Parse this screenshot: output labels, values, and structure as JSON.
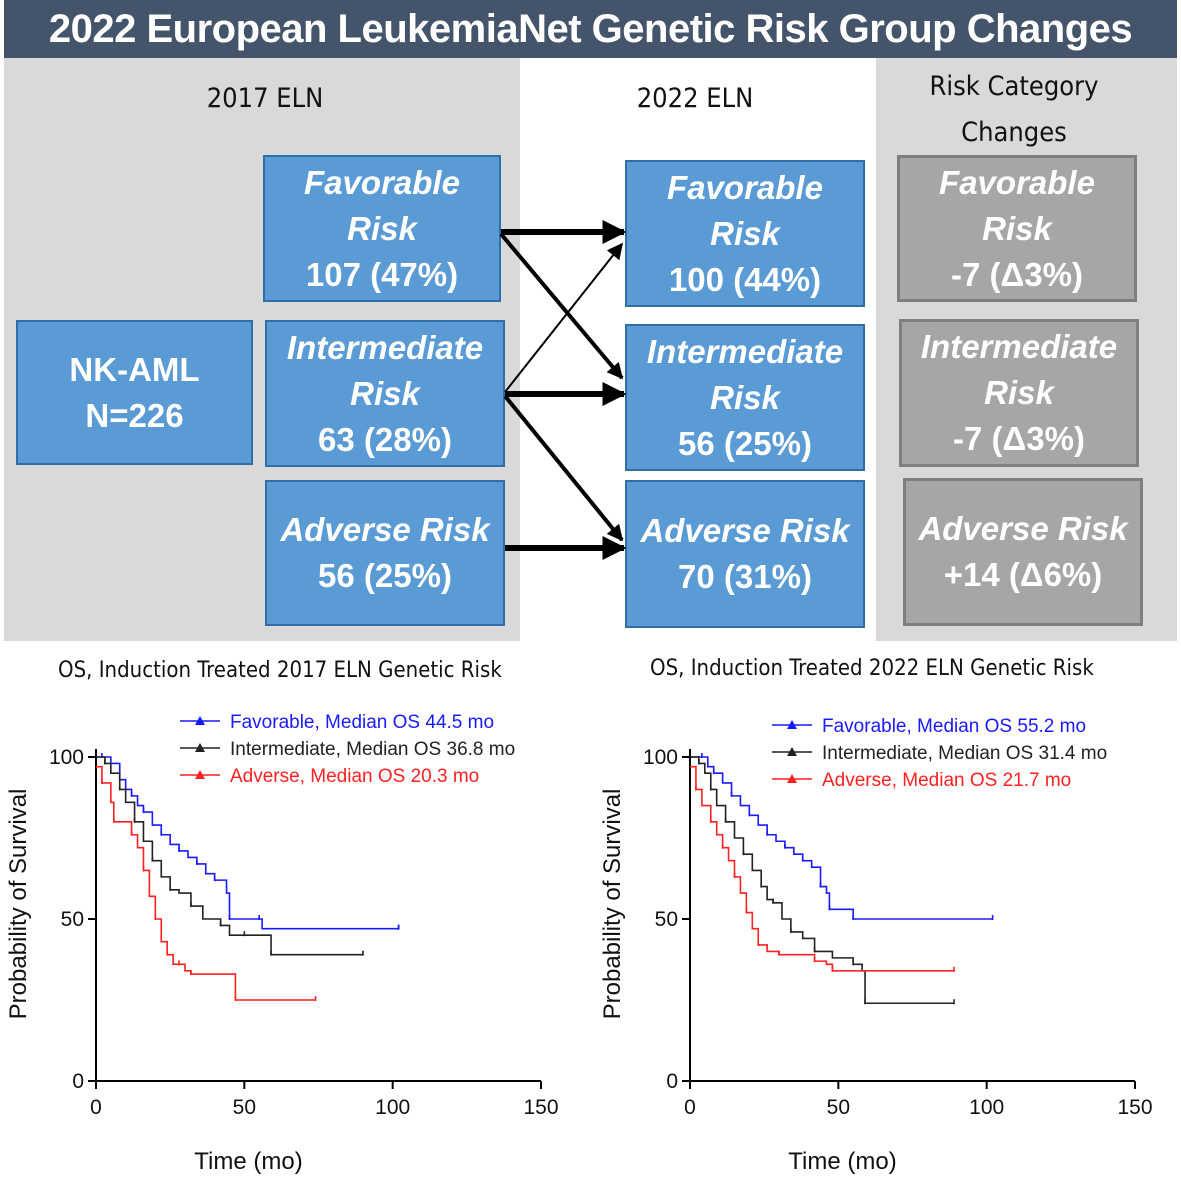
{
  "header": {
    "title": "2022 European LeukemiaNet Genetic Risk Group Changes"
  },
  "flow": {
    "col2017": "2017 ELN",
    "col2022": "2022 ELN",
    "colChanges": [
      "Risk Category",
      "Changes"
    ],
    "nkaml": [
      "NK-AML",
      "N=226"
    ],
    "eln2017": [
      {
        "lines": [
          "Favorable",
          "Risk"
        ],
        "value": "107 (47%)"
      },
      {
        "lines": [
          "Intermediate",
          "Risk"
        ],
        "value": "63 (28%)"
      },
      {
        "lines": [
          "Adverse Risk"
        ],
        "value": "56 (25%)"
      }
    ],
    "eln2022": [
      {
        "lines": [
          "Favorable",
          "Risk"
        ],
        "value": "100 (44%)"
      },
      {
        "lines": [
          "Intermediate",
          "Risk"
        ],
        "value": "56 (25%)"
      },
      {
        "lines": [
          "Adverse Risk"
        ],
        "value": "70 (31%)"
      }
    ],
    "changes": [
      {
        "lines": [
          "Favorable",
          "Risk"
        ],
        "value": "-7 (Δ3%)"
      },
      {
        "lines": [
          "Intermediate",
          "Risk"
        ],
        "value": "-7 (Δ3%)"
      },
      {
        "lines": [
          "Adverse Risk"
        ],
        "value": "+14 (Δ6%)"
      }
    ]
  },
  "chart_data": [
    {
      "type": "line",
      "title": "OS, Induction Treated 2017 ELN Genetic Risk",
      "xlabel": "Time (mo)",
      "ylabel": "Probability of Survival",
      "xlim": [
        0,
        150
      ],
      "ylim": [
        0,
        100
      ],
      "xticks": [
        0,
        50,
        100,
        150
      ],
      "yticks": [
        0,
        50,
        100
      ],
      "legend_position": "top",
      "series": [
        {
          "name": "Favorable, Median OS 44.5 mo",
          "color": "#1a1aff",
          "points": [
            [
              0,
              100
            ],
            [
              2,
              100
            ],
            [
              5,
              98
            ],
            [
              8,
              93
            ],
            [
              10,
              90
            ],
            [
              12,
              88
            ],
            [
              14,
              85
            ],
            [
              16,
              83
            ],
            [
              19,
              79
            ],
            [
              22,
              76
            ],
            [
              25,
              73
            ],
            [
              28,
              71
            ],
            [
              31,
              69
            ],
            [
              34,
              67
            ],
            [
              37,
              64
            ],
            [
              40,
              62
            ],
            [
              44,
              58
            ],
            [
              45,
              50
            ],
            [
              50,
              50
            ],
            [
              55,
              50
            ],
            [
              56,
              47
            ],
            [
              102,
              47
            ]
          ]
        },
        {
          "name": "Intermediate, Median OS 36.8 mo",
          "color": "#222222",
          "points": [
            [
              0,
              100
            ],
            [
              3,
              98
            ],
            [
              5,
              95
            ],
            [
              8,
              90
            ],
            [
              10,
              86
            ],
            [
              13,
              80
            ],
            [
              16,
              74
            ],
            [
              19,
              68
            ],
            [
              22,
              63
            ],
            [
              25,
              59
            ],
            [
              28,
              58
            ],
            [
              32,
              54
            ],
            [
              36,
              50
            ],
            [
              42,
              48
            ],
            [
              45,
              45
            ],
            [
              50,
              45
            ],
            [
              58,
              45
            ],
            [
              59,
              39
            ],
            [
              90,
              39
            ]
          ]
        },
        {
          "name": "Adverse, Median OS 20.3 mo",
          "color": "#ff2020",
          "points": [
            [
              0,
              97
            ],
            [
              2,
              92
            ],
            [
              5,
              86
            ],
            [
              6,
              80
            ],
            [
              10,
              80
            ],
            [
              12,
              76
            ],
            [
              14,
              72
            ],
            [
              16,
              65
            ],
            [
              18,
              57
            ],
            [
              20,
              50
            ],
            [
              22,
              43
            ],
            [
              24,
              39
            ],
            [
              26,
              36
            ],
            [
              28,
              36
            ],
            [
              30,
              34
            ],
            [
              32,
              33
            ],
            [
              46,
              33
            ],
            [
              47,
              25
            ],
            [
              74,
              25
            ]
          ]
        }
      ]
    },
    {
      "type": "line",
      "title": "OS, Induction Treated 2022 ELN Genetic Risk",
      "xlabel": "Time (mo)",
      "ylabel": "Probability of Survival",
      "xlim": [
        0,
        150
      ],
      "ylim": [
        0,
        100
      ],
      "xticks": [
        0,
        50,
        100,
        150
      ],
      "yticks": [
        0,
        50,
        100
      ],
      "legend_position": "top",
      "series": [
        {
          "name": "Favorable, Median OS 55.2 mo",
          "color": "#1a1aff",
          "points": [
            [
              0,
              100
            ],
            [
              4,
              100
            ],
            [
              6,
              97
            ],
            [
              8,
              95
            ],
            [
              11,
              92
            ],
            [
              14,
              88
            ],
            [
              17,
              85
            ],
            [
              20,
              82
            ],
            [
              23,
              79
            ],
            [
              26,
              76
            ],
            [
              29,
              74
            ],
            [
              32,
              72
            ],
            [
              35,
              70
            ],
            [
              38,
              68
            ],
            [
              41,
              66
            ],
            [
              44,
              60
            ],
            [
              46,
              58
            ],
            [
              47,
              53
            ],
            [
              52,
              53
            ],
            [
              55,
              50
            ],
            [
              102,
              50
            ]
          ]
        },
        {
          "name": "Intermediate, Median  OS 31.4 mo",
          "color": "#222222",
          "points": [
            [
              0,
              100
            ],
            [
              3,
              98
            ],
            [
              5,
              95
            ],
            [
              7,
              90
            ],
            [
              9,
              85
            ],
            [
              12,
              80
            ],
            [
              15,
              75
            ],
            [
              18,
              70
            ],
            [
              21,
              65
            ],
            [
              24,
              60
            ],
            [
              26,
              56
            ],
            [
              28,
              55
            ],
            [
              31,
              50
            ],
            [
              34,
              46
            ],
            [
              38,
              44
            ],
            [
              42,
              40
            ],
            [
              48,
              38
            ],
            [
              55,
              36
            ],
            [
              58,
              34
            ],
            [
              59,
              24
            ],
            [
              89,
              24
            ]
          ]
        },
        {
          "name": "Adverse,  Median OS 21.7 mo",
          "color": "#ff2020",
          "points": [
            [
              0,
              97
            ],
            [
              2,
              90
            ],
            [
              4,
              85
            ],
            [
              7,
              80
            ],
            [
              9,
              76
            ],
            [
              11,
              72
            ],
            [
              13,
              68
            ],
            [
              15,
              63
            ],
            [
              17,
              58
            ],
            [
              19,
              52
            ],
            [
              21,
              47
            ],
            [
              23,
              42
            ],
            [
              26,
              40
            ],
            [
              30,
              39
            ],
            [
              38,
              39
            ],
            [
              42,
              37
            ],
            [
              46,
              36
            ],
            [
              48,
              34
            ],
            [
              89,
              34
            ]
          ]
        }
      ]
    }
  ]
}
